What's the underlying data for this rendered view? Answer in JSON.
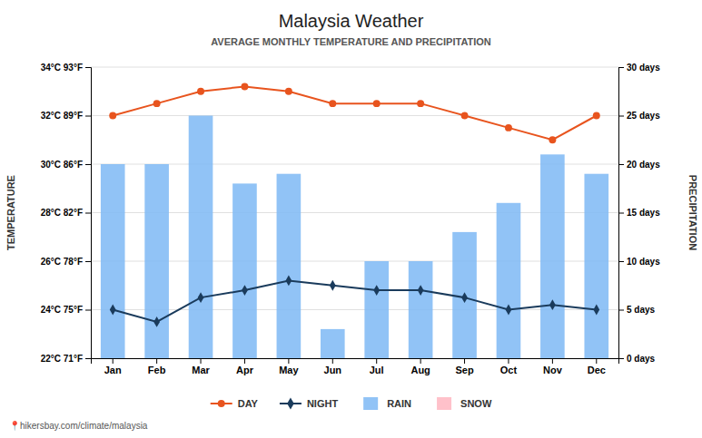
{
  "chart_data": {
    "type": "bar",
    "title": "Malaysia Weather",
    "subtitle": "AVERAGE MONTHLY TEMPERATURE AND PRECIPITATION",
    "y_label": "TEMPERATURE",
    "y2_label": "PRECIPITATION",
    "categories": [
      "Jan",
      "Feb",
      "Mar",
      "Apr",
      "May",
      "Jun",
      "Jul",
      "Aug",
      "Sep",
      "Oct",
      "Nov",
      "Dec"
    ],
    "series": [
      {
        "name": "DAY",
        "type": "line",
        "color": "#E8541E",
        "marker": "circle",
        "values": [
          32,
          32.5,
          33,
          33.2,
          33,
          32.5,
          32.5,
          32.5,
          32,
          31.5,
          31,
          32
        ]
      },
      {
        "name": "NIGHT",
        "type": "line",
        "color": "#1A3B5C",
        "marker": "diamond",
        "values": [
          24,
          23.5,
          24.5,
          24.8,
          25.2,
          25,
          24.8,
          24.8,
          24.5,
          24,
          24.2,
          24
        ]
      },
      {
        "name": "RAIN",
        "type": "bar",
        "axis": "y2",
        "color": "#7EB9F5",
        "values": [
          20,
          20,
          25,
          18,
          19,
          3,
          10,
          10,
          13,
          16,
          21,
          19
        ]
      },
      {
        "name": "SNOW",
        "type": "bar",
        "axis": "y2",
        "color": "#FFB6C1",
        "values": [
          null,
          null,
          null,
          null,
          null,
          null,
          null,
          null,
          null,
          null,
          null,
          null
        ]
      }
    ],
    "ylim": [
      22,
      34
    ],
    "yticks": [
      {
        "value": 22,
        "label": "22°C 71°F"
      },
      {
        "value": 24,
        "label": "24°C 75°F"
      },
      {
        "value": 26,
        "label": "26°C 78°F"
      },
      {
        "value": 28,
        "label": "28°C 82°F"
      },
      {
        "value": 30,
        "label": "30°C 86°F"
      },
      {
        "value": 32,
        "label": "32°C 89°F"
      },
      {
        "value": 34,
        "label": "34°C 93°F"
      }
    ],
    "y2lim": [
      0,
      30
    ],
    "y2ticks": [
      {
        "value": 0,
        "label": "0 days"
      },
      {
        "value": 5,
        "label": "5 days"
      },
      {
        "value": 10,
        "label": "10 days"
      },
      {
        "value": 15,
        "label": "15 days"
      },
      {
        "value": 20,
        "label": "20 days"
      },
      {
        "value": 25,
        "label": "25 days"
      },
      {
        "value": 30,
        "label": "30 days"
      }
    ],
    "grid": true,
    "legend": "bottom",
    "annotations": [
      "📍hikersbay.com/climate/malaysia"
    ]
  }
}
